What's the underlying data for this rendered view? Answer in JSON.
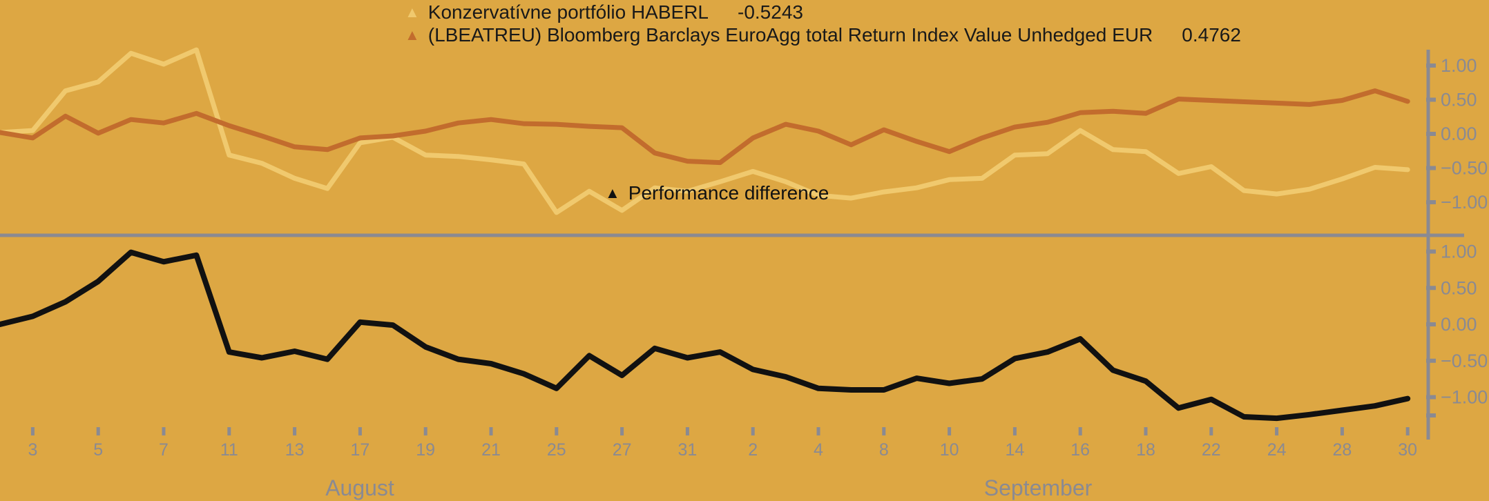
{
  "colors": {
    "background": "#DDA743",
    "series_konzervativne": "#F0C96E",
    "series_lbeatreu": "#C26C2D",
    "series_difference": "#111111",
    "axis_gray": "#8A8A92",
    "legend_text": "#191919"
  },
  "legend": {
    "series": [
      {
        "label": "Konzervatívne portfólio HABERL",
        "value": "-0.5243",
        "color": "#F0C96E",
        "marker": "triangle-up"
      },
      {
        "label": "(LBEATREU) Bloomberg Barclays EuroAgg total Return Index Value Unhedged EUR",
        "value": "0.4762",
        "color": "#C26C2D",
        "marker": "triangle-up"
      }
    ],
    "difference": {
      "label": "Performance difference",
      "color": "#111111",
      "marker": "triangle-up"
    }
  },
  "chart_data": {
    "type": "line",
    "layout": "two stacked panels sharing one x axis, y axes on right side",
    "grid": false,
    "x_dates": [
      "Jul 31",
      "Aug 3",
      "Aug 4",
      "Aug 5",
      "Aug 6",
      "Aug 7",
      "Aug 10",
      "Aug 11",
      "Aug 12",
      "Aug 13",
      "Aug 14",
      "Aug 17",
      "Aug 18",
      "Aug 19",
      "Aug 20",
      "Aug 21",
      "Aug 24",
      "Aug 25",
      "Aug 26",
      "Aug 27",
      "Aug 28",
      "Aug 31",
      "Sep 1",
      "Sep 2",
      "Sep 3",
      "Sep 4",
      "Sep 7",
      "Sep 8",
      "Sep 9",
      "Sep 10",
      "Sep 11",
      "Sep 14",
      "Sep 15",
      "Sep 16",
      "Sep 17",
      "Sep 18",
      "Sep 21",
      "Sep 22",
      "Sep 23",
      "Sep 24",
      "Sep 25",
      "Sep 28",
      "Sep 29",
      "Sep 30"
    ],
    "x_tick_labels": [
      "3",
      "5",
      "7",
      "11",
      "13",
      "17",
      "19",
      "21",
      "25",
      "27",
      "31",
      "2",
      "4",
      "8",
      "10",
      "14",
      "16",
      "18",
      "22",
      "24",
      "28",
      "30"
    ],
    "month_labels": [
      "August",
      "September"
    ],
    "y_tick_labels": [
      "1.00",
      "0.50",
      "0.00",
      "−0.50",
      "−1.00"
    ],
    "y_tick_values": [
      1.0,
      0.5,
      0.0,
      -0.5,
      -1.0
    ],
    "ylim_top_panel": [
      -1.3,
      1.45
    ],
    "ylim_bottom_panel": [
      -1.45,
      1.25
    ],
    "series": [
      {
        "name": "Konzervatívne portfólio HABERL",
        "panel": "top",
        "last_value": -0.5243,
        "values": [
          0.02,
          0.05,
          0.63,
          0.76,
          1.18,
          1.02,
          1.23,
          -0.31,
          -0.43,
          -0.65,
          -0.8,
          -0.13,
          -0.05,
          -0.31,
          -0.33,
          -0.38,
          -0.44,
          -1.15,
          -0.84,
          -1.12,
          -0.79,
          -0.84,
          -0.7,
          -0.55,
          -0.7,
          -0.9,
          -0.94,
          -0.85,
          -0.79,
          -0.67,
          -0.65,
          -0.31,
          -0.29,
          0.05,
          -0.23,
          -0.26,
          -0.58,
          -0.48,
          -0.83,
          -0.88,
          -0.81,
          -0.66,
          -0.49,
          -0.5243
        ]
      },
      {
        "name": "(LBEATREU) Bloomberg Barclays EuroAgg total Return Index Value Unhedged EUR",
        "panel": "top",
        "last_value": 0.4762,
        "values": [
          0.02,
          -0.06,
          0.26,
          0.01,
          0.21,
          0.16,
          0.3,
          0.12,
          -0.03,
          -0.19,
          -0.23,
          -0.06,
          -0.03,
          0.04,
          0.16,
          0.21,
          0.15,
          0.14,
          0.11,
          0.09,
          -0.28,
          -0.4,
          -0.42,
          -0.06,
          0.14,
          0.04,
          -0.16,
          0.06,
          -0.11,
          -0.26,
          -0.06,
          0.1,
          0.17,
          0.31,
          0.33,
          0.3,
          0.51,
          0.49,
          0.47,
          0.45,
          0.43,
          0.49,
          0.63,
          0.4762
        ]
      },
      {
        "name": "Performance difference",
        "panel": "bottom",
        "values": [
          0.0,
          0.11,
          0.31,
          0.59,
          0.99,
          0.86,
          0.95,
          -0.38,
          -0.46,
          -0.37,
          -0.48,
          0.03,
          -0.01,
          -0.31,
          -0.48,
          -0.54,
          -0.68,
          -0.88,
          -0.43,
          -0.7,
          -0.33,
          -0.46,
          -0.38,
          -0.62,
          -0.72,
          -0.88,
          -0.9,
          -0.9,
          -0.74,
          -0.81,
          -0.75,
          -0.47,
          -0.38,
          -0.2,
          -0.63,
          -0.78,
          -1.15,
          -1.03,
          -1.27,
          -1.29,
          -1.24,
          -1.18,
          -1.12,
          -1.02
        ]
      }
    ]
  }
}
